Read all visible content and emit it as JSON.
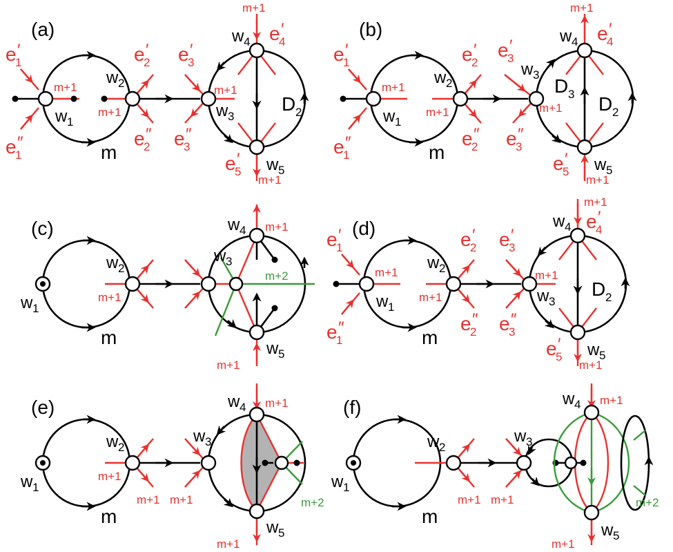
{
  "panels": [
    {
      "id": "a",
      "label": "(a)"
    },
    {
      "id": "b",
      "label": "(b)"
    },
    {
      "id": "c",
      "label": "(c)"
    },
    {
      "id": "d",
      "label": "(d)"
    },
    {
      "id": "e",
      "label": "(e)"
    },
    {
      "id": "f",
      "label": "(f)"
    }
  ],
  "labels": {
    "w1": "w",
    "w2": "w",
    "w3": "w",
    "w4": "w",
    "w5": "w",
    "sub1": "1",
    "sub2": "2",
    "sub3": "3",
    "sub4": "4",
    "sub5": "5",
    "m": "m",
    "mp1": "m+1",
    "mp2": "m+2",
    "e": "e",
    "D": "D",
    "prime": "′",
    "dprime": "″"
  },
  "colors": {
    "edge": "#000000",
    "red": "#e8312f",
    "green": "#3a9a3a",
    "shade": "#b3b3b3"
  }
}
